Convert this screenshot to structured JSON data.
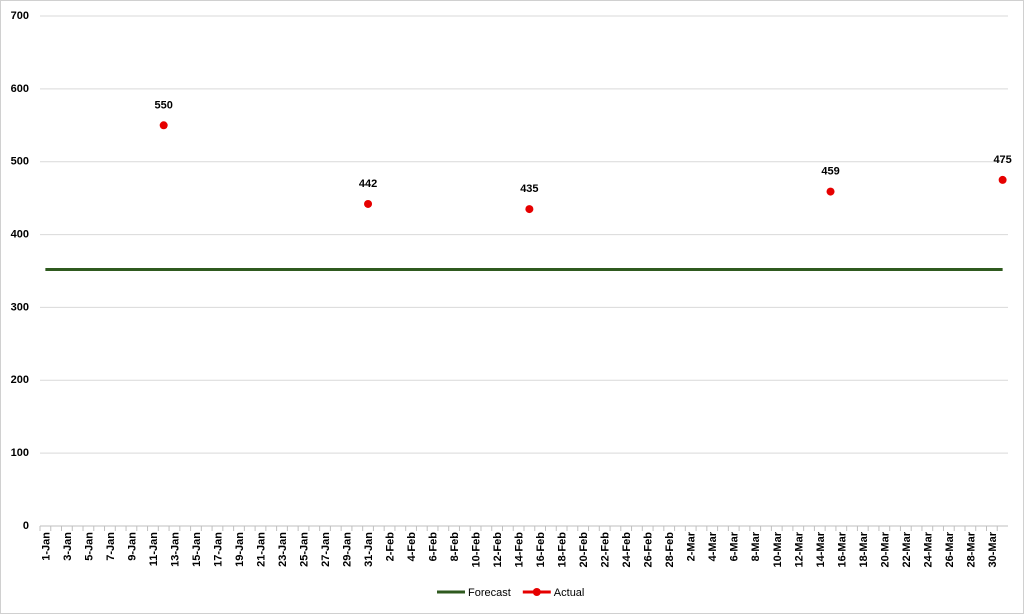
{
  "chart_data": {
    "type": "line",
    "categories": [
      "1-Jan",
      null,
      "3-Jan",
      null,
      "5-Jan",
      null,
      "7-Jan",
      null,
      "9-Jan",
      null,
      "11-Jan",
      null,
      "13-Jan",
      null,
      "15-Jan",
      null,
      "17-Jan",
      null,
      "19-Jan",
      null,
      "21-Jan",
      null,
      "23-Jan",
      null,
      "25-Jan",
      null,
      "27-Jan",
      null,
      "29-Jan",
      null,
      "31-Jan",
      null,
      "2-Feb",
      null,
      "4-Feb",
      null,
      "6-Feb",
      null,
      "8-Feb",
      null,
      "10-Feb",
      null,
      "12-Feb",
      null,
      "14-Feb",
      null,
      "16-Feb",
      null,
      "18-Feb",
      null,
      "20-Feb",
      null,
      "22-Feb",
      null,
      "24-Feb",
      null,
      "26-Feb",
      null,
      "28-Feb",
      null,
      "2-Mar",
      null,
      "4-Mar",
      null,
      "6-Mar",
      null,
      "8-Mar",
      null,
      "10-Mar",
      null,
      "12-Mar",
      null,
      "14-Mar",
      null,
      "16-Mar",
      null,
      "18-Mar",
      null,
      "20-Mar",
      null,
      "22-Mar",
      null,
      "24-Mar",
      null,
      "26-Mar",
      null,
      "28-Mar",
      null,
      "30-Mar",
      null
    ],
    "series": [
      {
        "name": "Forecast",
        "color": "#2f5a1f",
        "style": "line",
        "values": [
          352,
          352,
          352,
          352,
          352,
          352,
          352,
          352,
          352,
          352,
          352,
          352,
          352,
          352,
          352,
          352,
          352,
          352,
          352,
          352,
          352,
          352,
          352,
          352,
          352,
          352,
          352,
          352,
          352,
          352,
          352,
          352,
          352,
          352,
          352,
          352,
          352,
          352,
          352,
          352,
          352,
          352,
          352,
          352,
          352,
          352,
          352,
          352,
          352,
          352,
          352,
          352,
          352,
          352,
          352,
          352,
          352,
          352,
          352,
          352,
          352,
          352,
          352,
          352,
          352,
          352,
          352,
          352,
          352,
          352,
          352,
          352,
          352,
          352,
          352,
          352,
          352,
          352,
          352,
          352,
          352,
          352,
          352,
          352,
          352,
          352,
          352,
          352,
          352,
          352
        ]
      },
      {
        "name": "Actual",
        "color": "#e60000",
        "style": "marker",
        "values": [
          null,
          null,
          null,
          null,
          null,
          null,
          null,
          null,
          null,
          null,
          null,
          550,
          null,
          null,
          null,
          null,
          null,
          null,
          null,
          null,
          null,
          null,
          null,
          null,
          null,
          null,
          null,
          null,
          null,
          null,
          442,
          null,
          null,
          null,
          null,
          null,
          null,
          null,
          null,
          null,
          null,
          null,
          null,
          null,
          null,
          435,
          null,
          null,
          null,
          null,
          null,
          null,
          null,
          null,
          null,
          null,
          null,
          null,
          null,
          null,
          null,
          null,
          null,
          null,
          null,
          null,
          null,
          null,
          null,
          null,
          null,
          null,
          null,
          459,
          null,
          null,
          null,
          null,
          null,
          null,
          null,
          null,
          null,
          null,
          null,
          null,
          null,
          null,
          null,
          475
        ]
      }
    ],
    "ylim": [
      0,
      700
    ],
    "yticks": [
      0,
      100,
      200,
      300,
      400,
      500,
      600,
      700
    ],
    "grid": true,
    "legend": "bottom"
  }
}
